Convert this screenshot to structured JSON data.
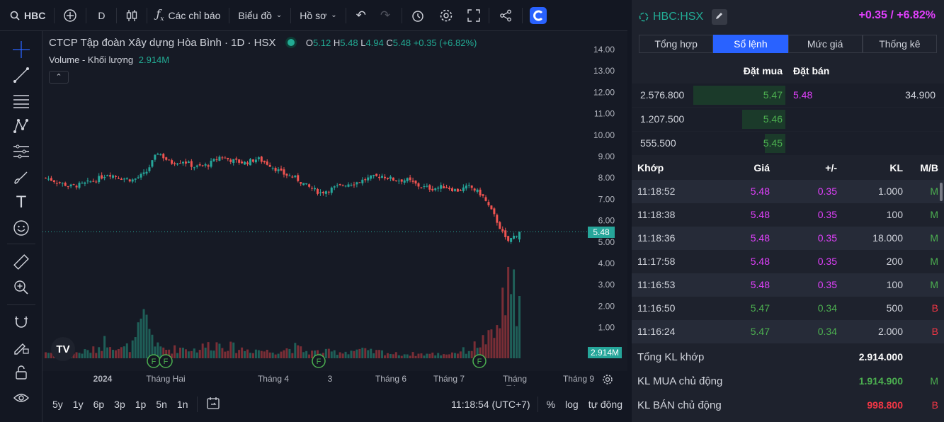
{
  "toolbar": {
    "symbol": "HBC",
    "interval": "D",
    "indicators": "Các chỉ báo",
    "chart_type": "Biểu đồ",
    "profile": "Hồ sơ"
  },
  "chart": {
    "title": "CTCP Tập đoàn Xây dựng Hòa Bình · 1D · HSX",
    "ohlc": {
      "o_label": "O",
      "o": "5.12",
      "h_label": "H",
      "h": "5.48",
      "l_label": "L",
      "l": "4.94",
      "c_label": "C",
      "c": "5.48",
      "change": "+0.35 (+6.82%)"
    },
    "volume_label": "Volume - Khối lượng",
    "volume_value": "2.914M",
    "price_ticks": [
      "14.00",
      "13.00",
      "12.00",
      "11.00",
      "10.00",
      "9.00",
      "8.00",
      "7.00",
      "6.00",
      "5.00",
      "4.00",
      "3.00",
      "2.00",
      "1.00"
    ],
    "last_price_tag": "5.48",
    "volume_tag": "2.914M",
    "time_labels": [
      "2024",
      "Tháng Hai",
      "Tháng 4",
      "3",
      "Tháng 6",
      "Tháng 7",
      "Tháng Tám",
      "Tháng 9"
    ],
    "event_marker": "F",
    "colors": {
      "up": "#26a69a",
      "down": "#ef5350"
    }
  },
  "chart_data": {
    "type": "candlestick",
    "ylim": [
      0,
      14.5
    ],
    "series": [
      {
        "name": "Volume - Khối lượng"
      }
    ],
    "close_approx": [
      8.0,
      7.8,
      7.6,
      7.7,
      7.9,
      8.2,
      8.0,
      7.9,
      8.2,
      9.2,
      8.7,
      8.8,
      8.5,
      8.6,
      9.0,
      8.8,
      8.7,
      8.9,
      8.6,
      8.2,
      8.0,
      7.6,
      7.3,
      7.5,
      7.7,
      7.8,
      8.0,
      8.1,
      7.9,
      7.9,
      7.6,
      7.5,
      7.6,
      7.4,
      7.6,
      7.2,
      6.2,
      5.0,
      5.48
    ],
    "volume_approx_millions": [
      0.3,
      0.2,
      0.2,
      0.3,
      0.4,
      0.9,
      0.4,
      0.6,
      1.9,
      0.5,
      0.4,
      0.5,
      0.4,
      0.6,
      0.7,
      0.5,
      0.4,
      0.4,
      0.3,
      0.4,
      0.5,
      0.3,
      0.3,
      0.3,
      0.3,
      0.4,
      0.3,
      0.3,
      0.2,
      0.2,
      0.2,
      0.2,
      0.2,
      0.3,
      0.4,
      0.8,
      1.0,
      3.0,
      2.914
    ]
  },
  "timeframes": [
    "5y",
    "1y",
    "6p",
    "3p",
    "1p",
    "5n",
    "1n"
  ],
  "clock": "11:18:54 (UTC+7)",
  "bottom_right": {
    "pct": "%",
    "log": "log",
    "auto": "tự động"
  },
  "panel": {
    "symbol": "HBC:HSX",
    "change": "+0.35 / +6.82%",
    "tabs": [
      "Tổng hợp",
      "Sổ lệnh",
      "Mức giá",
      "Thống kê"
    ],
    "book_headers": {
      "bid": "Đặt mua",
      "ask": "Đặt bán"
    },
    "book": [
      {
        "bid_vol": "2.576.800",
        "bid": "5.47",
        "ask": "5.48",
        "ask_vol": "34.900",
        "depth": 1
      },
      {
        "bid_vol": "1.207.500",
        "bid": "5.46",
        "ask": "",
        "ask_vol": "",
        "depth": 0.47
      },
      {
        "bid_vol": "555.500",
        "bid": "5.45",
        "ask": "",
        "ask_vol": "",
        "depth": 0.22
      }
    ],
    "trade_headers": {
      "time": "Khớp",
      "price": "Giá",
      "chg": "+/-",
      "vol": "KL",
      "side": "M/B"
    },
    "trades": [
      {
        "time": "11:18:52",
        "price": "5.48",
        "chg": "0.35",
        "vol": "1.000",
        "side": "M"
      },
      {
        "time": "11:18:38",
        "price": "5.48",
        "chg": "0.35",
        "vol": "100",
        "side": "M"
      },
      {
        "time": "11:18:36",
        "price": "5.48",
        "chg": "0.35",
        "vol": "18.000",
        "side": "M"
      },
      {
        "time": "11:17:58",
        "price": "5.48",
        "chg": "0.35",
        "vol": "200",
        "side": "M"
      },
      {
        "time": "11:16:53",
        "price": "5.48",
        "chg": "0.35",
        "vol": "100",
        "side": "M"
      },
      {
        "time": "11:16:50",
        "price": "5.47",
        "chg": "0.34",
        "vol": "500",
        "side": "B"
      },
      {
        "time": "11:16:24",
        "price": "5.47",
        "chg": "0.34",
        "vol": "2.000",
        "side": "B"
      }
    ],
    "summary": [
      {
        "label": "Tổng KL khớp",
        "value": "2.914.000",
        "side": ""
      },
      {
        "label": "KL MUA chủ động",
        "value": "1.914.900",
        "side": "M"
      },
      {
        "label": "KL BÁN chủ động",
        "value": "998.800",
        "side": "B"
      }
    ]
  }
}
